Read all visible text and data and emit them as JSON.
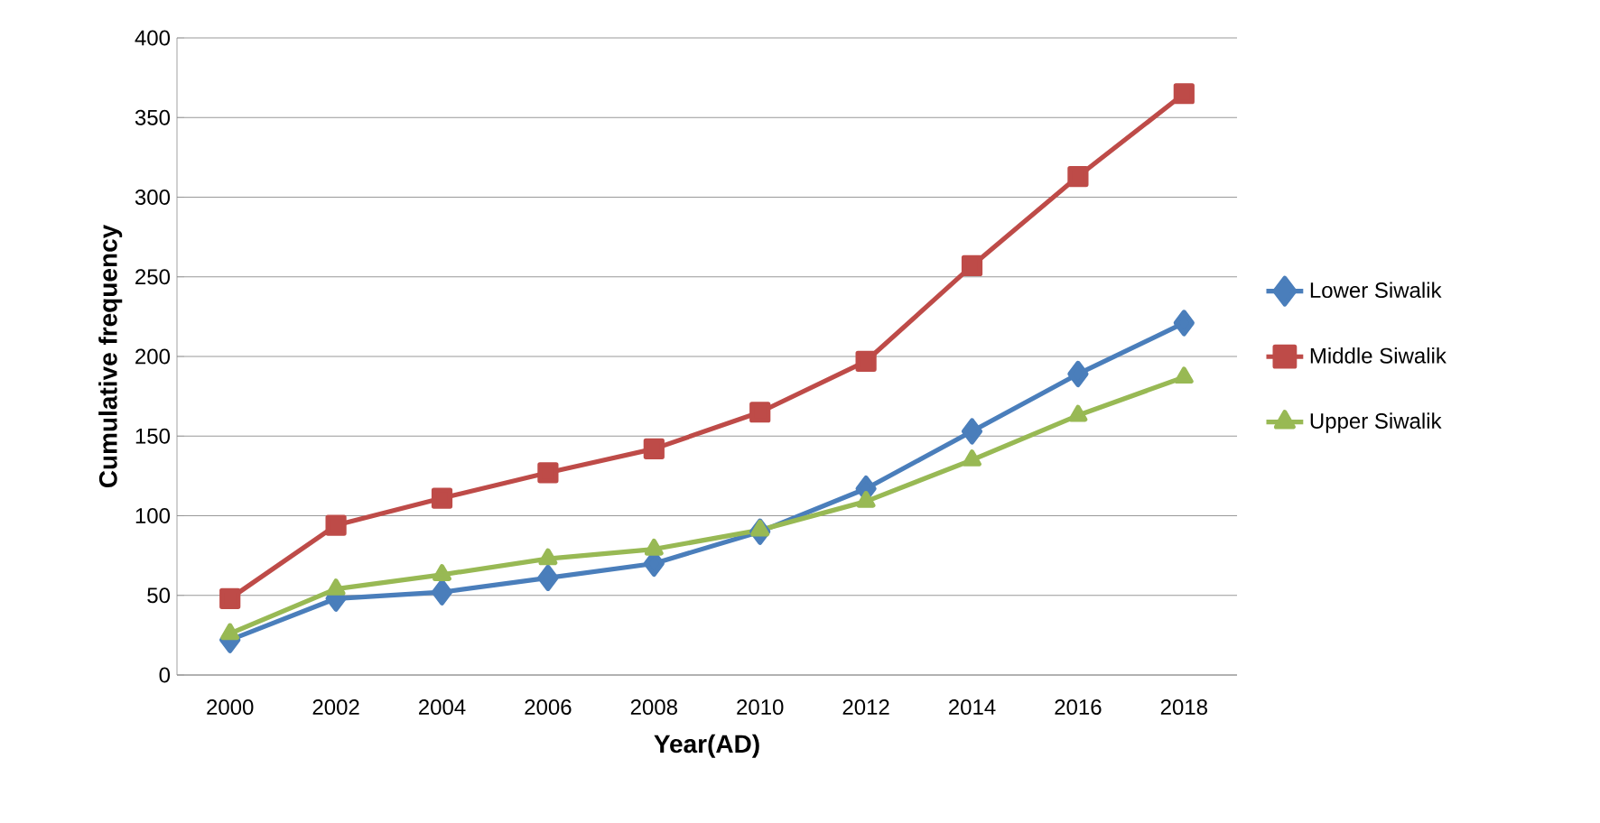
{
  "chart_data": {
    "type": "line",
    "xlabel": "Year(AD)",
    "ylabel": "Cumulative frequency",
    "categories": [
      "2000",
      "2002",
      "2004",
      "2006",
      "2008",
      "2010",
      "2012",
      "2014",
      "2016",
      "2018"
    ],
    "series": [
      {
        "name": "Lower Siwalik",
        "color": "#4a7ebb",
        "marker": "diamond",
        "values": [
          22,
          48,
          52,
          61,
          70,
          90,
          117,
          153,
          189,
          221
        ]
      },
      {
        "name": "Middle Siwalik",
        "color": "#be4b48",
        "marker": "square",
        "values": [
          48,
          94,
          111,
          127,
          142,
          165,
          197,
          257,
          313,
          365
        ]
      },
      {
        "name": "Upper Siwalik",
        "color": "#98b954",
        "marker": "triangle",
        "values": [
          26,
          54,
          63,
          73,
          79,
          91,
          109,
          135,
          163,
          187
        ]
      }
    ],
    "ylim": [
      0,
      400
    ],
    "yticks": [
      0,
      50,
      100,
      150,
      200,
      250,
      300,
      350,
      400
    ],
    "grid": "y",
    "legend": "right",
    "line_style": "solid"
  }
}
